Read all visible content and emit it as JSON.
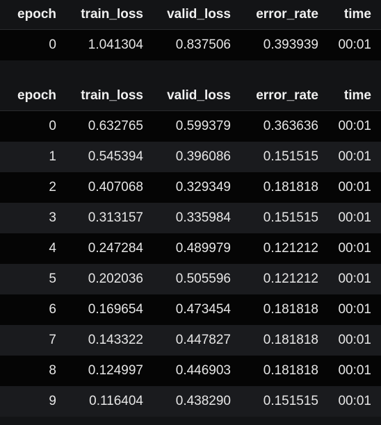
{
  "table1": {
    "columns": [
      "epoch",
      "train_loss",
      "valid_loss",
      "error_rate",
      "time"
    ],
    "rows": [
      [
        "0",
        "1.041304",
        "0.837506",
        "0.393939",
        "00:01"
      ]
    ]
  },
  "table2": {
    "columns": [
      "epoch",
      "train_loss",
      "valid_loss",
      "error_rate",
      "time"
    ],
    "rows": [
      [
        "0",
        "0.632765",
        "0.599379",
        "0.363636",
        "00:01"
      ],
      [
        "1",
        "0.545394",
        "0.396086",
        "0.151515",
        "00:01"
      ],
      [
        "2",
        "0.407068",
        "0.329349",
        "0.181818",
        "00:01"
      ],
      [
        "3",
        "0.313157",
        "0.335984",
        "0.151515",
        "00:01"
      ],
      [
        "4",
        "0.247284",
        "0.489979",
        "0.121212",
        "00:01"
      ],
      [
        "5",
        "0.202036",
        "0.505596",
        "0.121212",
        "00:01"
      ],
      [
        "6",
        "0.169654",
        "0.473454",
        "0.181818",
        "00:01"
      ],
      [
        "7",
        "0.143322",
        "0.447827",
        "0.181818",
        "00:01"
      ],
      [
        "8",
        "0.124997",
        "0.446903",
        "0.181818",
        "00:01"
      ],
      [
        "9",
        "0.116404",
        "0.438290",
        "0.151515",
        "00:01"
      ]
    ]
  }
}
